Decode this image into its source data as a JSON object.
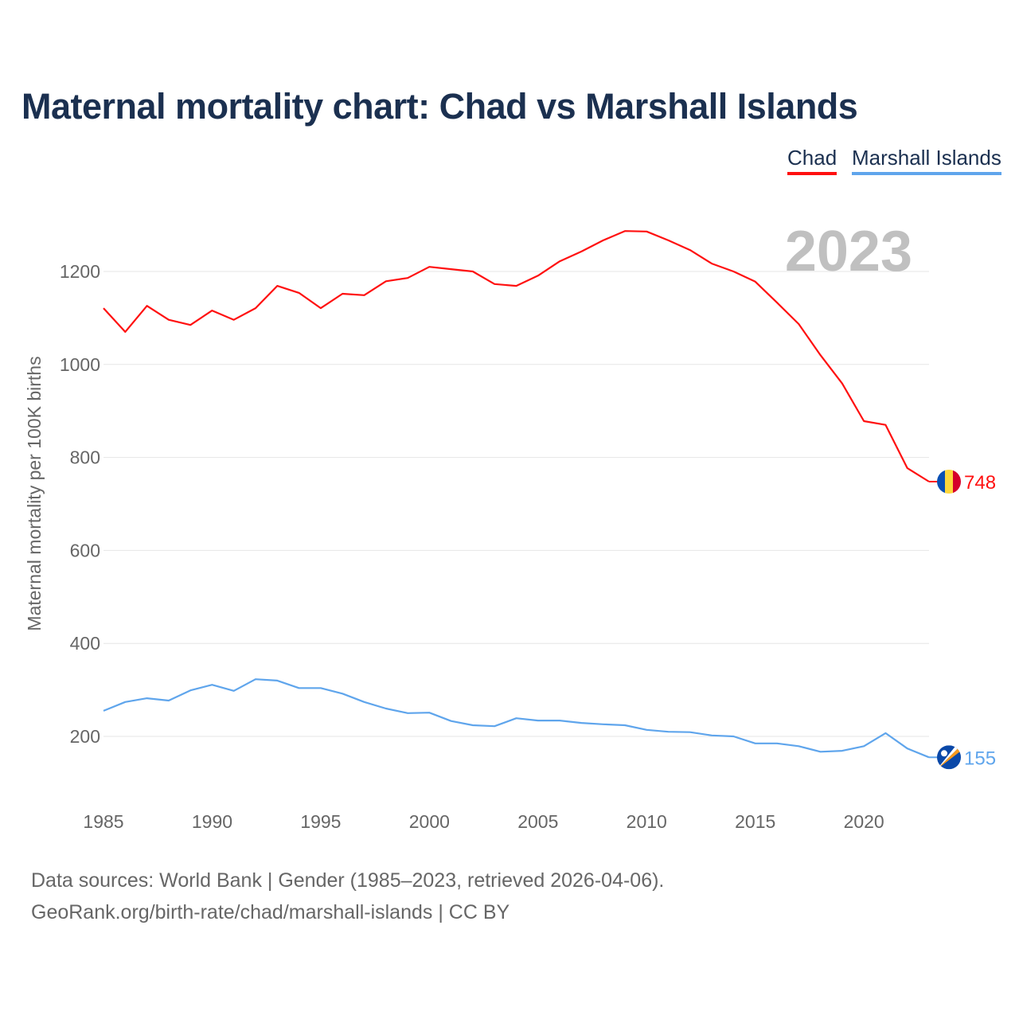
{
  "chart_data": {
    "type": "line",
    "title": "Maternal mortality chart: Chad vs Marshall Islands",
    "ylabel": "Maternal mortality per 100K births",
    "xlabel": "",
    "year_label": "2023",
    "xlim": [
      1985,
      2023
    ],
    "ylim": [
      100,
      1300
    ],
    "x_ticks": [
      1985,
      1990,
      1995,
      2000,
      2005,
      2010,
      2015,
      2020
    ],
    "y_ticks": [
      200,
      400,
      600,
      800,
      1000,
      1200
    ],
    "grid": true,
    "legend_position": "top-right",
    "x": [
      1985,
      1986,
      1987,
      1988,
      1989,
      1990,
      1991,
      1992,
      1993,
      1994,
      1995,
      1996,
      1997,
      1998,
      1999,
      2000,
      2001,
      2002,
      2003,
      2004,
      2005,
      2006,
      2007,
      2008,
      2009,
      2010,
      2011,
      2012,
      2013,
      2014,
      2015,
      2016,
      2017,
      2018,
      2019,
      2020,
      2021,
      2022,
      2023
    ],
    "series": [
      {
        "name": "Chad",
        "color": "#ff1010",
        "end_label": "748",
        "values": [
          1121,
          1070,
          1126,
          1096,
          1085,
          1116,
          1096,
          1121,
          1169,
          1154,
          1121,
          1152,
          1149,
          1179,
          1186,
          1210,
          1205,
          1200,
          1173,
          1169,
          1191,
          1222,
          1243,
          1267,
          1287,
          1286,
          1267,
          1246,
          1217,
          1200,
          1178,
          1133,
          1087,
          1020,
          959,
          878,
          870,
          777,
          748
        ]
      },
      {
        "name": "Marshall Islands",
        "color": "#5fa5ec",
        "end_label": "155",
        "values": [
          255,
          274,
          282,
          277,
          299,
          311,
          298,
          323,
          320,
          304,
          304,
          292,
          274,
          260,
          250,
          251,
          233,
          224,
          222,
          239,
          234,
          234,
          229,
          226,
          224,
          214,
          210,
          209,
          202,
          200,
          185,
          185,
          179,
          167,
          169,
          179,
          207,
          174,
          155
        ]
      }
    ]
  },
  "footer": {
    "line1": "Data sources: World Bank | Gender (1985–2023, retrieved 2026-04-06).",
    "line2": "GeoRank.org/birth-rate/chad/marshall-islands | CC BY"
  }
}
